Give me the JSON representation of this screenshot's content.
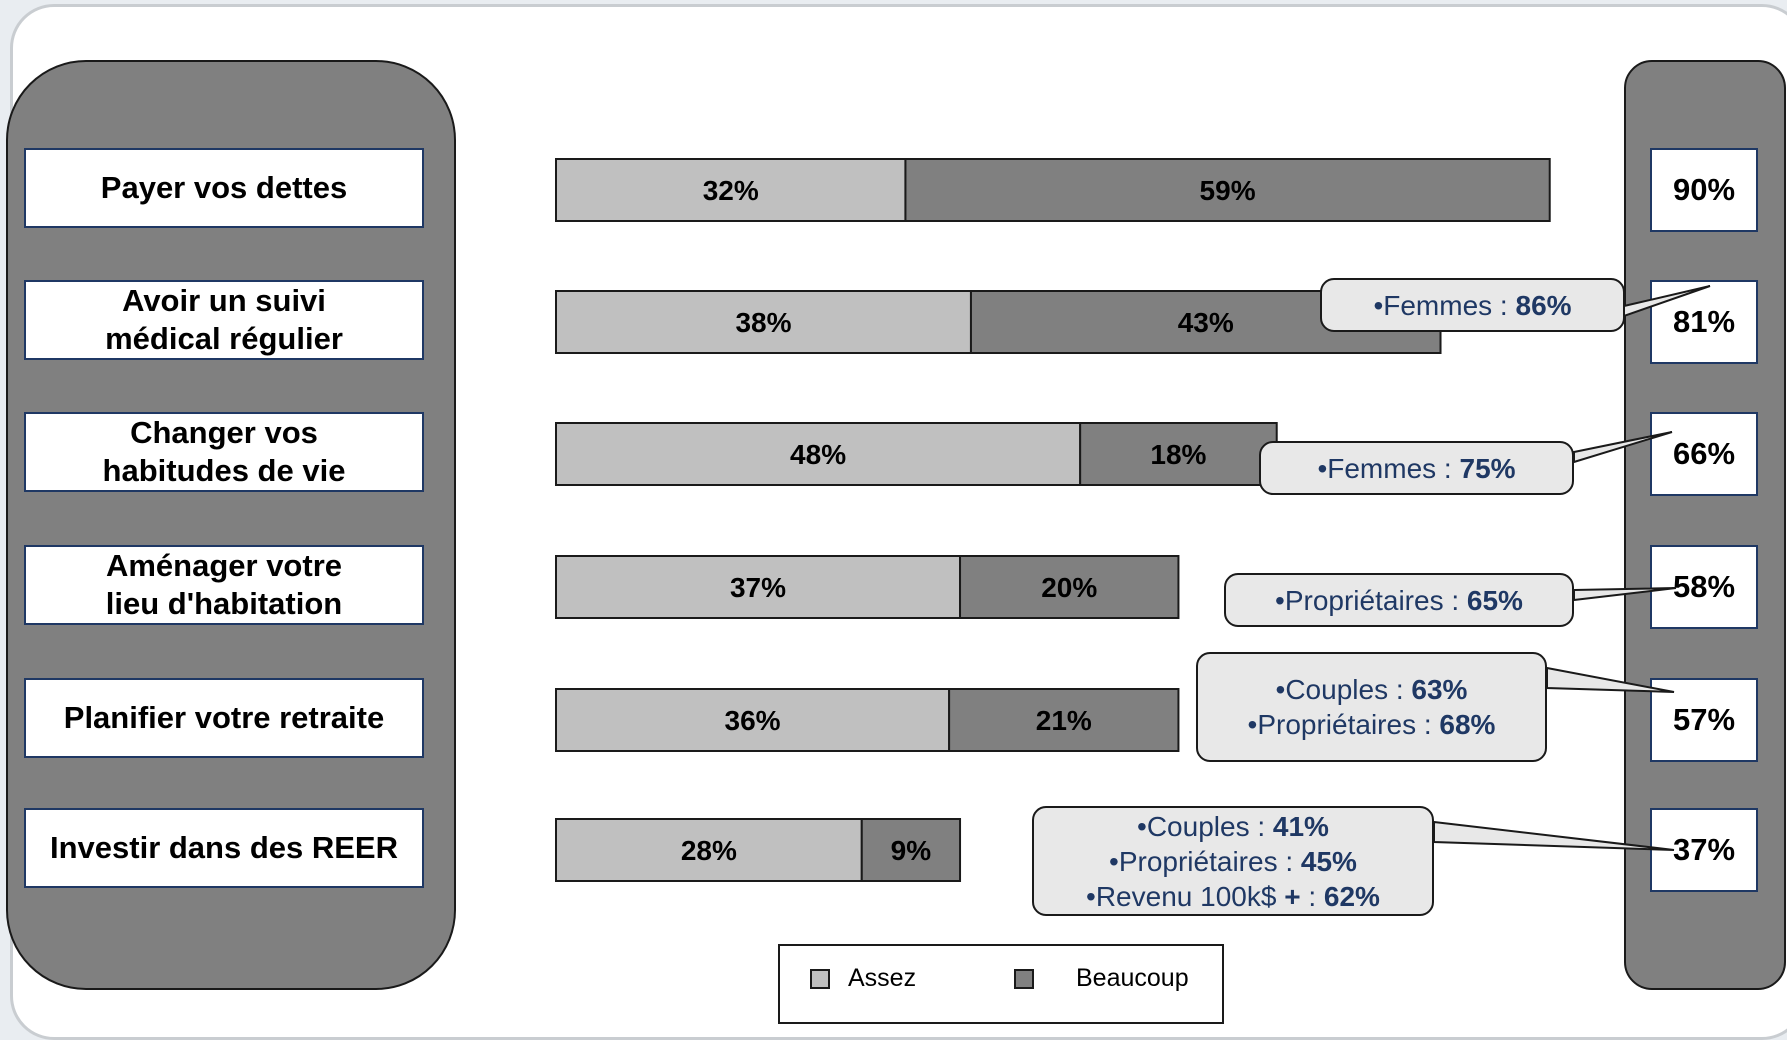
{
  "chart_data": {
    "type": "bar",
    "orientation": "horizontal",
    "stacked": true,
    "categories": [
      "Payer vos dettes",
      "Avoir un suivi\nmédical régulier",
      "Changer vos\nhabitudes de vie",
      "Aménager votre\nlieu d'habitation",
      "Planifier votre retraite",
      "Investir dans des REER"
    ],
    "series": [
      {
        "name": "Assez",
        "values": [
          32,
          38,
          48,
          37,
          36,
          28
        ],
        "labels": [
          "32%",
          "38%",
          "48%",
          "37%",
          "36%",
          "28%"
        ],
        "color": "#c0c0c0"
      },
      {
        "name": "Beaucoup",
        "values": [
          59,
          43,
          18,
          20,
          21,
          9
        ],
        "labels": [
          "59%",
          "43%",
          "18%",
          "20%",
          "21%",
          "9%"
        ],
        "color": "#808080"
      }
    ],
    "totals": [
      "90%",
      "81%",
      "66%",
      "58%",
      "57%",
      "37%"
    ],
    "legend_position": "bottom",
    "grid": false,
    "xlim": [
      0,
      100
    ],
    "callouts": [
      {
        "row": 1,
        "lines": [
          {
            "text": "•Femmes : ",
            "value": "86%"
          }
        ]
      },
      {
        "row": 2,
        "lines": [
          {
            "text": "•Femmes : ",
            "value": "75%"
          }
        ]
      },
      {
        "row": 3,
        "lines": [
          {
            "text": "•Propriétaires : ",
            "value": "65%"
          }
        ]
      },
      {
        "row": 4,
        "lines": [
          {
            "text": "•Couples : ",
            "value": "63%"
          },
          {
            "text": "•Propriétaires : ",
            "value": "68%"
          }
        ]
      },
      {
        "row": 5,
        "lines": [
          {
            "text": "•Couples : ",
            "value": "41%"
          },
          {
            "text": "•Propriétaires : ",
            "value": "45%"
          },
          {
            "text": "•Revenu 100k$ ",
            "bold": "+",
            "text2": " : ",
            "value": "62%"
          }
        ]
      }
    ]
  },
  "legend": {
    "assez": "Assez",
    "beaucoup": "Beaucoup"
  },
  "colors": {
    "assez": "#c0c0c0",
    "beaucoup": "#808080",
    "panel": "#808080",
    "callout_text": "#1f3864"
  }
}
